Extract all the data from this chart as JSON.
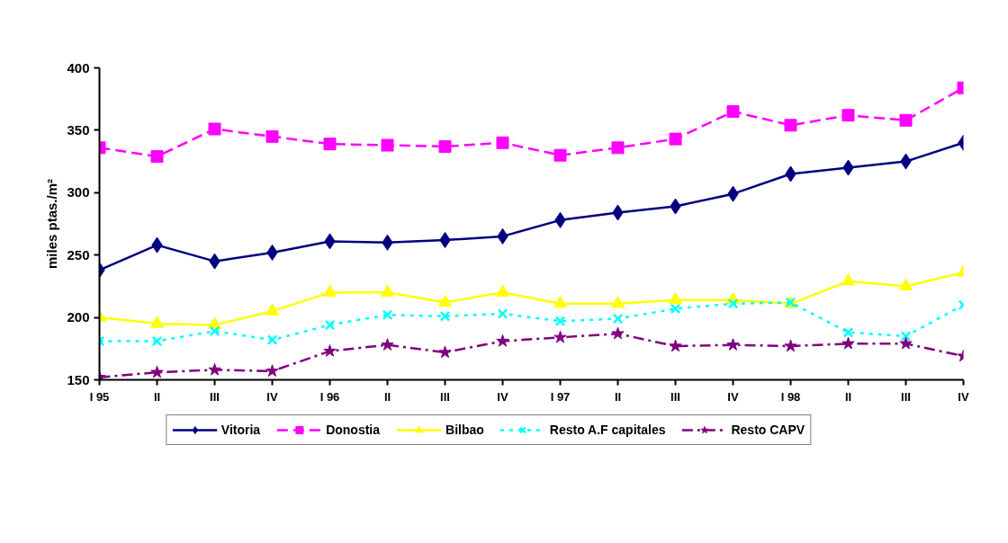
{
  "chart_data": {
    "type": "line",
    "ylabel": "miles ptas./m²",
    "categories": [
      "I 95",
      "II",
      "III",
      "IV",
      "I 96",
      "II",
      "III",
      "IV",
      "I 97",
      "II",
      "III",
      "IV",
      "I 98",
      "II",
      "III",
      "IV"
    ],
    "ylim": [
      150,
      400
    ],
    "yticks": [
      150,
      200,
      250,
      300,
      350,
      400
    ],
    "grid": false,
    "legend": "bottom",
    "series": [
      {
        "name": "Vitoria",
        "color": "#000080",
        "marker": "diamond",
        "line_style": "solid",
        "values": [
          238,
          258,
          245,
          252,
          261,
          260,
          262,
          265,
          278,
          284,
          289,
          299,
          315,
          320,
          325,
          340
        ]
      },
      {
        "name": "Donostia",
        "color": "#ff00ff",
        "marker": "square",
        "line_style": "dashed",
        "values": [
          336,
          329,
          351,
          345,
          339,
          338,
          337,
          340,
          330,
          336,
          343,
          365,
          354,
          362,
          358,
          384
        ]
      },
      {
        "name": "Bilbao",
        "color": "#ffff00",
        "marker": "triangle",
        "line_style": "solid",
        "values": [
          200,
          195,
          194,
          205,
          220,
          220,
          212,
          220,
          211,
          211,
          214,
          214,
          211,
          229,
          225,
          236
        ]
      },
      {
        "name": "Resto A.F capitales",
        "color": "#00ffff",
        "marker": "cross",
        "line_style": "dotted",
        "values": [
          181,
          181,
          189,
          182,
          194,
          202,
          201,
          203,
          197,
          199,
          207,
          211,
          212,
          188,
          185,
          210
        ]
      },
      {
        "name": "Resto CAPV",
        "color": "#800080",
        "marker": "star",
        "line_style": "dashdot",
        "values": [
          152,
          156,
          158,
          157,
          173,
          178,
          172,
          181,
          184,
          187,
          177,
          178,
          177,
          179,
          179,
          169
        ]
      }
    ]
  }
}
